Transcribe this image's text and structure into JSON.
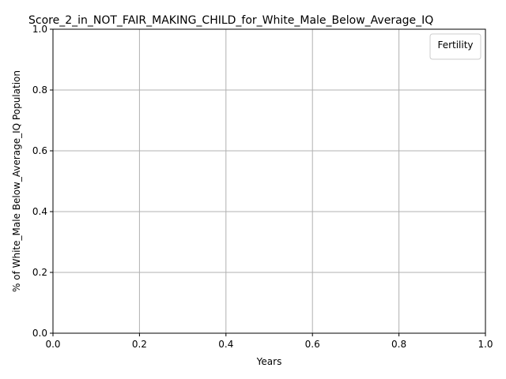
{
  "chart_data": {
    "type": "line",
    "title": "Score_2_in_NOT_FAIR_MAKING_CHILD_for_White_Male_Below_Average_IQ",
    "xlabel": "Years",
    "ylabel": "% of White_Male Below_Average_IQ Population",
    "xlim": [
      0.0,
      1.0
    ],
    "ylim": [
      0.0,
      1.0
    ],
    "xticks": [
      "0.0",
      "0.2",
      "0.4",
      "0.6",
      "0.8",
      "1.0"
    ],
    "yticks": [
      "0.0",
      "0.2",
      "0.4",
      "0.6",
      "0.8",
      "1.0"
    ],
    "grid": true,
    "legend": {
      "title": "Fertility",
      "placement": "upper right",
      "entries": []
    },
    "series": []
  }
}
